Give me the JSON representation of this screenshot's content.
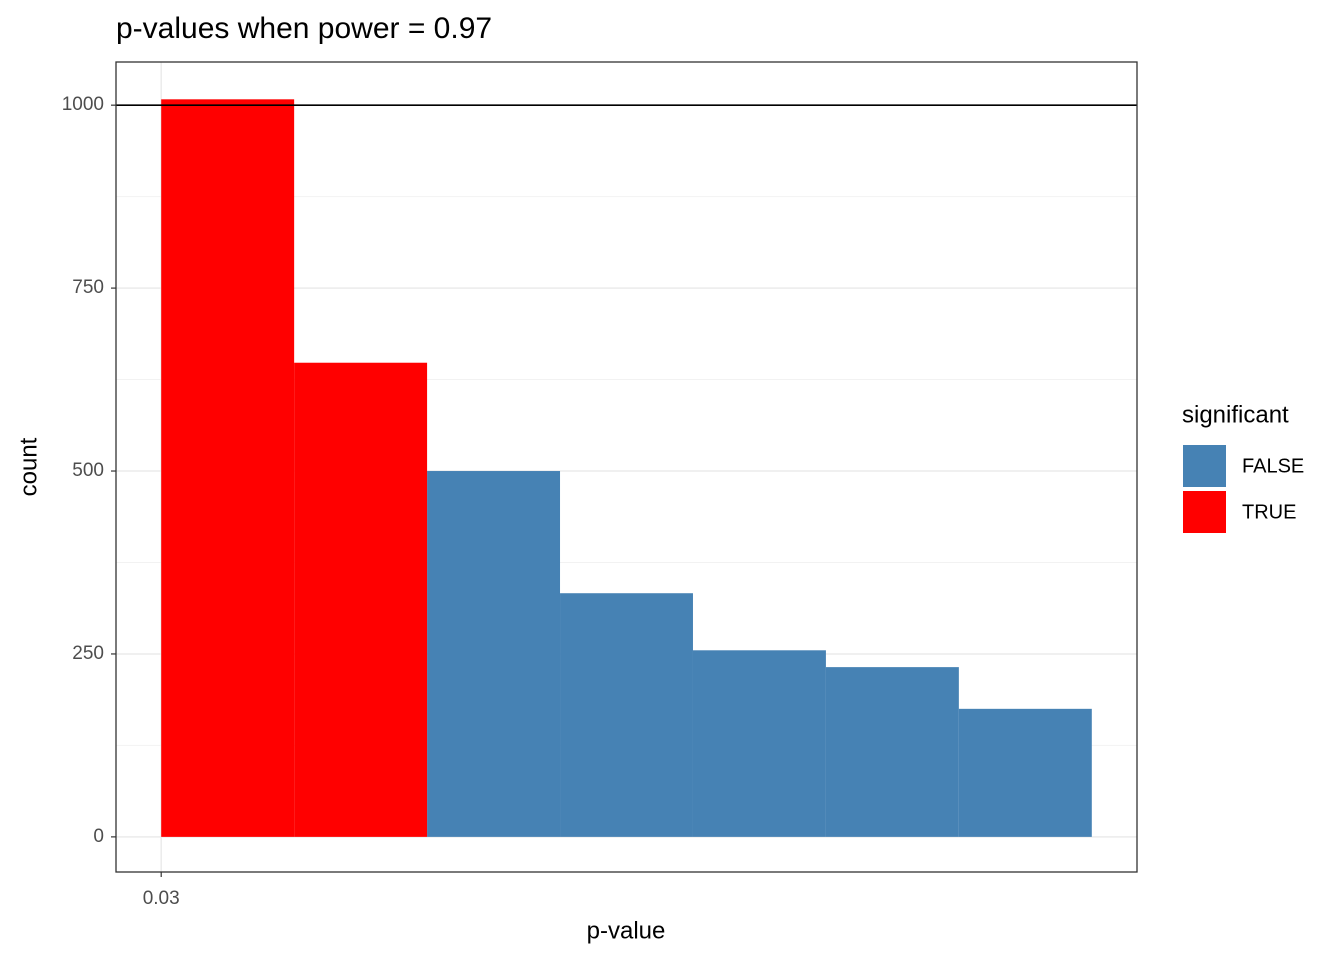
{
  "chart_data": {
    "type": "histogram",
    "title": "p-values when power = 0.97",
    "x_label": "p-value",
    "y_label": "count",
    "bins": [
      0.03,
      0.04,
      0.05,
      0.06,
      0.07,
      0.08,
      0.09,
      0.1
    ],
    "series": [
      {
        "name": "FALSE",
        "color": "#4682b4",
        "values": [
          0,
          0,
          500,
          333,
          255,
          232,
          175
        ]
      },
      {
        "name": "TRUE",
        "color": "#ff0000",
        "values": [
          1008,
          648,
          0,
          0,
          0,
          0,
          0
        ]
      }
    ],
    "legend_title": "significant",
    "legend": "right",
    "hline": 1000,
    "xlim": [
      0.0266,
      0.1034
    ],
    "xticks": [
      0.03
    ],
    "ylim": [
      -48,
      1059
    ],
    "yticks": [
      0,
      250,
      500,
      750,
      1000
    ],
    "y_minor_ticks": [
      125,
      375,
      625,
      875
    ],
    "grid": true
  }
}
